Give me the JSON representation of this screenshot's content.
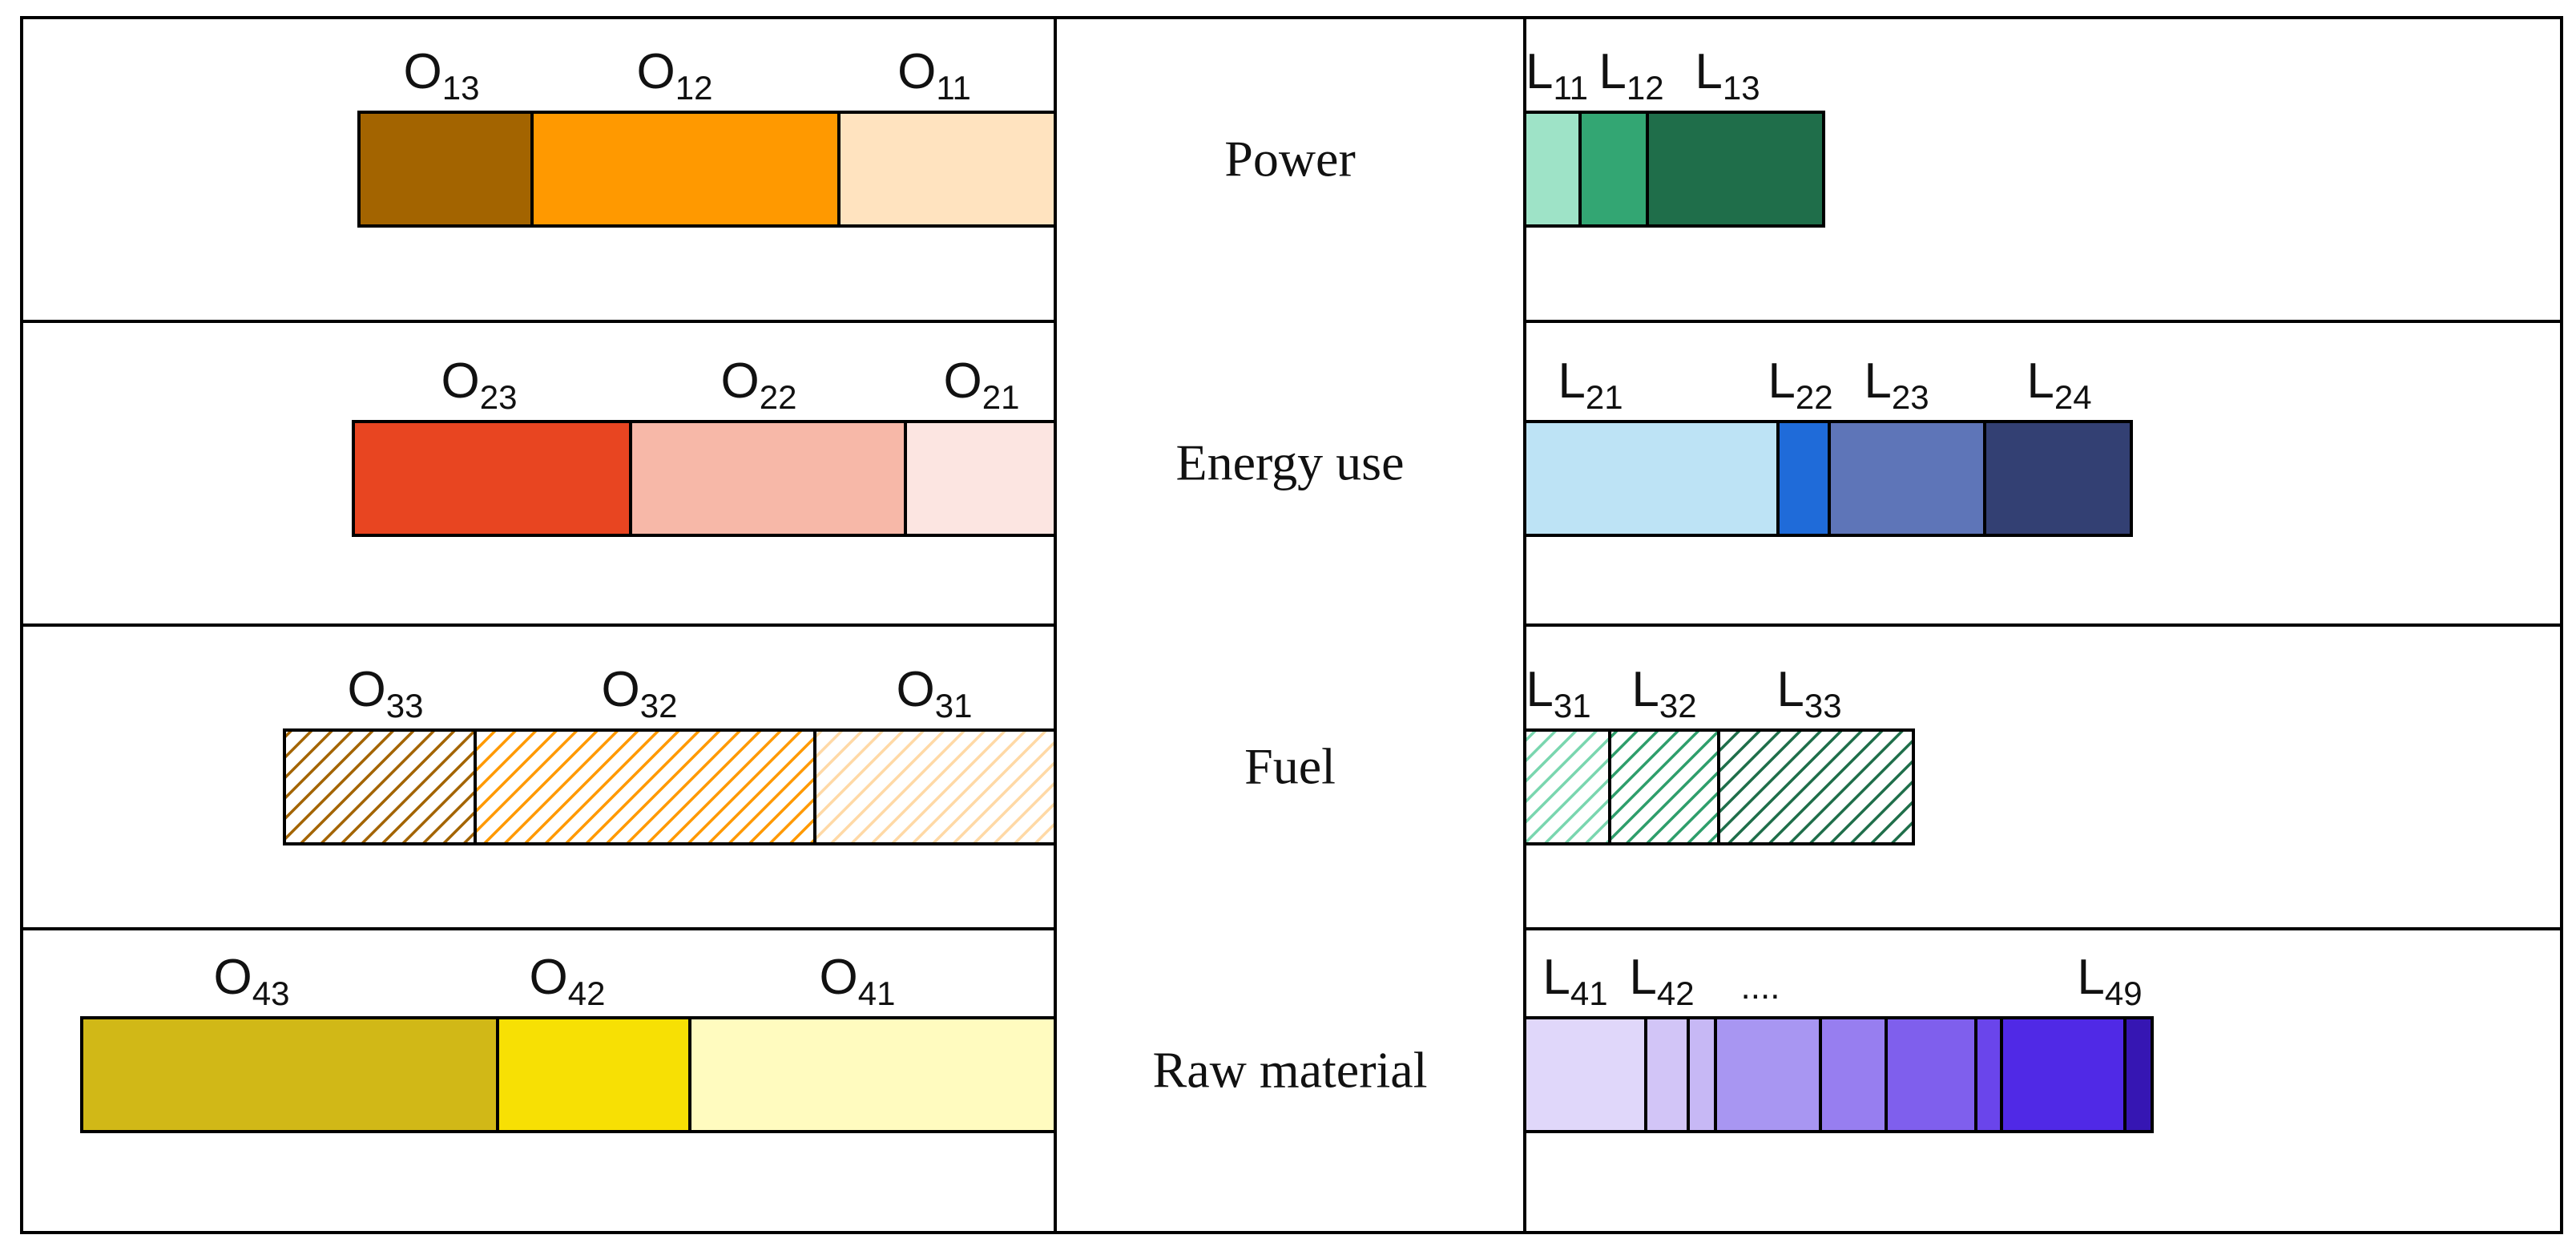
{
  "rows": [
    {
      "category": "Power",
      "left_segments": [
        {
          "label": "O",
          "sub": "13",
          "color": "#A36400",
          "hatch": false
        },
        {
          "label": "O",
          "sub": "12",
          "color": "#FF9900",
          "hatch": false
        },
        {
          "label": "O",
          "sub": "11",
          "color": "#FFE3BF",
          "hatch": false
        }
      ],
      "right_segments": [
        {
          "label": "L",
          "sub": "11",
          "color": "#9EE3C7",
          "hatch": false
        },
        {
          "label": "L",
          "sub": "12",
          "color": "#33A673",
          "hatch": false
        },
        {
          "label": "L",
          "sub": "13",
          "color": "#1F6E4A",
          "hatch": false
        }
      ]
    },
    {
      "category": "Energy use",
      "left_segments": [
        {
          "label": "O",
          "sub": "23",
          "color": "#E84521",
          "hatch": false
        },
        {
          "label": "O",
          "sub": "22",
          "color": "#F7B8A8",
          "hatch": false
        },
        {
          "label": "O",
          "sub": "21",
          "color": "#FCE5E1",
          "hatch": false
        }
      ],
      "right_segments": [
        {
          "label": "L",
          "sub": "21",
          "color": "#BDE3F5",
          "hatch": false
        },
        {
          "label": "L",
          "sub": "22",
          "color": "#1F6BD9",
          "hatch": false
        },
        {
          "label": "L",
          "sub": "23",
          "color": "#5E75B8",
          "hatch": false
        },
        {
          "label": "L",
          "sub": "24",
          "color": "#334073",
          "hatch": false
        }
      ]
    },
    {
      "category": "Fuel",
      "left_segments": [
        {
          "label": "O",
          "sub": "33",
          "color": "#A36400",
          "hatch": true
        },
        {
          "label": "O",
          "sub": "32",
          "color": "#FF9900",
          "hatch": true
        },
        {
          "label": "O",
          "sub": "31",
          "color": "#FFD9A6",
          "hatch": true
        }
      ],
      "right_segments": [
        {
          "label": "L",
          "sub": "31",
          "color": "#7AD6AF",
          "hatch": true
        },
        {
          "label": "L",
          "sub": "32",
          "color": "#2E9E6B",
          "hatch": true
        },
        {
          "label": "L",
          "sub": "33",
          "color": "#1F6E4A",
          "hatch": true
        }
      ]
    },
    {
      "category": "Raw material",
      "left_segments": [
        {
          "label": "O",
          "sub": "43",
          "color": "#D1B817",
          "hatch": false
        },
        {
          "label": "O",
          "sub": "42",
          "color": "#F7E004",
          "hatch": false
        },
        {
          "label": "O",
          "sub": "41",
          "color": "#FFFBBF",
          "hatch": false
        }
      ],
      "right_segments": [
        {
          "label": "L",
          "sub": "41",
          "color": "#E0D7FA",
          "hatch": false
        },
        {
          "label": "L",
          "sub": "42",
          "color": "#D2C5F7",
          "hatch": false
        },
        {
          "label": "",
          "sub": "",
          "color": "#C7B8F5",
          "hatch": false
        },
        {
          "label": "",
          "sub": "",
          "color": "#A896F2",
          "hatch": false
        },
        {
          "label": "",
          "sub": "",
          "color": "#977EF0",
          "hatch": false
        },
        {
          "label": "",
          "sub": "",
          "color": "#7F5FED",
          "hatch": false
        },
        {
          "label": "",
          "sub": "",
          "color": "#6A45EB",
          "hatch": false
        },
        {
          "label": "",
          "sub": "",
          "color": "#5029E6",
          "hatch": false
        },
        {
          "label": "L",
          "sub": "49",
          "color": "#3616B3",
          "hatch": false
        }
      ],
      "right_ellipsis": "...."
    }
  ]
}
